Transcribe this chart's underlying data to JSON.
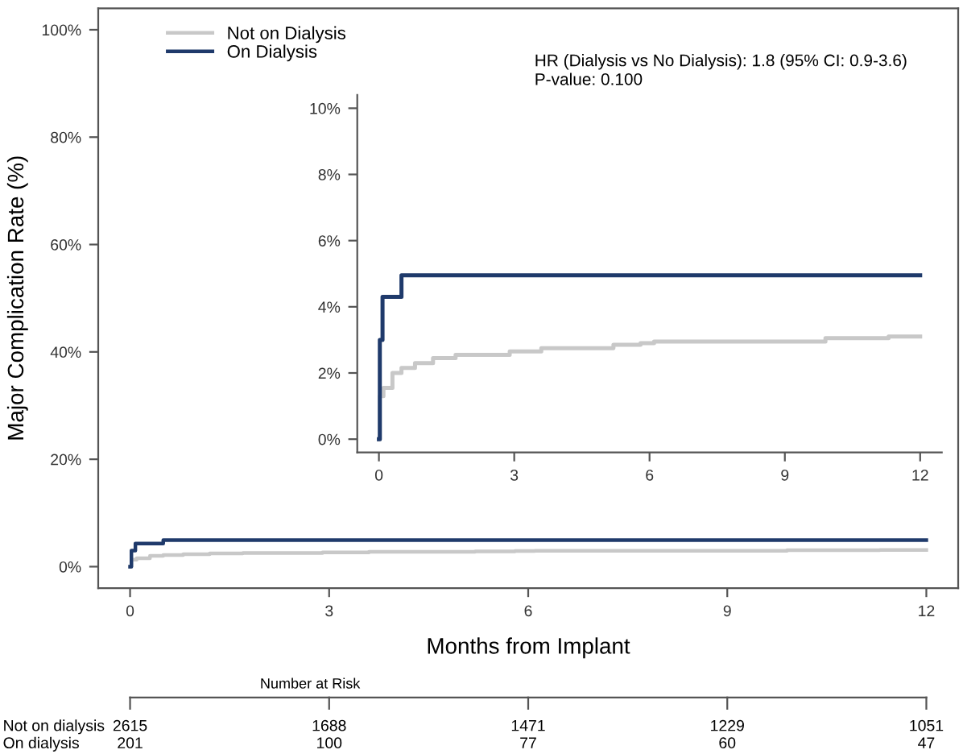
{
  "chart_data": [
    {
      "type": "step",
      "xlabel": "Months from Implant",
      "ylabel": "Major Complication Rate (%)",
      "legend": "top left",
      "grid": false,
      "line_style": "solid",
      "marker": "none",
      "xlim": [
        -0.48,
        12.48
      ],
      "ylim": [
        -4,
        104
      ],
      "xticks": [
        0,
        3,
        6,
        9,
        12
      ],
      "yticks": [
        {
          "value": 0,
          "label": "0%"
        },
        {
          "value": 20,
          "label": "20%"
        },
        {
          "value": 40,
          "label": "40%"
        },
        {
          "value": 60,
          "label": "60%"
        },
        {
          "value": 80,
          "label": "80%"
        },
        {
          "value": 100,
          "label": "100%"
        }
      ],
      "series": [
        {
          "name": "Not on Dialysis",
          "color": "#c8c8c8",
          "x": [
            0,
            0.02,
            0.1,
            0.3,
            0.5,
            0.8,
            1.2,
            1.7,
            2.9,
            3.6,
            5.2,
            5.8,
            6.1,
            9.9,
            11.3,
            12
          ],
          "values": [
            0,
            1.3,
            1.55,
            2.0,
            2.15,
            2.3,
            2.45,
            2.55,
            2.65,
            2.75,
            2.85,
            2.9,
            2.95,
            3.05,
            3.1,
            3.1
          ]
        },
        {
          "name": "On Dialysis",
          "color": "#1f3a6b",
          "x": [
            0,
            0.02,
            0.08,
            0.5,
            12
          ],
          "values": [
            0,
            3.0,
            4.3,
            4.95,
            4.95
          ]
        }
      ],
      "annotations": [
        "HR (Dialysis vs No Dialysis): 1.8 (95% CI: 0.9-3.6)",
        "P-value: 0.100",
        "Number at Risk",
        "Not on dialysis",
        "On dialysis",
        "2615",
        "1688",
        "1471",
        "1229",
        "1051",
        "201",
        "100",
        "77",
        "60",
        "47"
      ]
    },
    {
      "type": "step",
      "grid": false,
      "legend": false,
      "line_style": "solid",
      "marker": "none",
      "xlim": [
        -0.48,
        12.48
      ],
      "ylim": [
        -0.4,
        10.4
      ],
      "xticks": [
        0,
        3,
        6,
        9,
        12
      ],
      "yticks": [
        {
          "value": 0,
          "label": "0%"
        },
        {
          "value": 2,
          "label": "2%"
        },
        {
          "value": 4,
          "label": "4%"
        },
        {
          "value": 6,
          "label": "6%"
        },
        {
          "value": 8,
          "label": "8%"
        },
        {
          "value": 10,
          "label": "10%"
        }
      ],
      "series": [
        {
          "color": "#c8c8c8",
          "x": [
            0,
            0.02,
            0.1,
            0.3,
            0.5,
            0.8,
            1.2,
            1.7,
            2.9,
            3.6,
            5.2,
            5.8,
            6.1,
            9.9,
            11.3,
            12
          ],
          "values": [
            0,
            1.3,
            1.55,
            2.0,
            2.15,
            2.3,
            2.45,
            2.55,
            2.65,
            2.75,
            2.85,
            2.9,
            2.95,
            3.05,
            3.1,
            3.1
          ]
        },
        {
          "color": "#1f3a6b",
          "x": [
            0,
            0.02,
            0.08,
            0.5,
            12
          ],
          "values": [
            0,
            3.0,
            4.3,
            4.95,
            4.95
          ]
        }
      ]
    }
  ]
}
